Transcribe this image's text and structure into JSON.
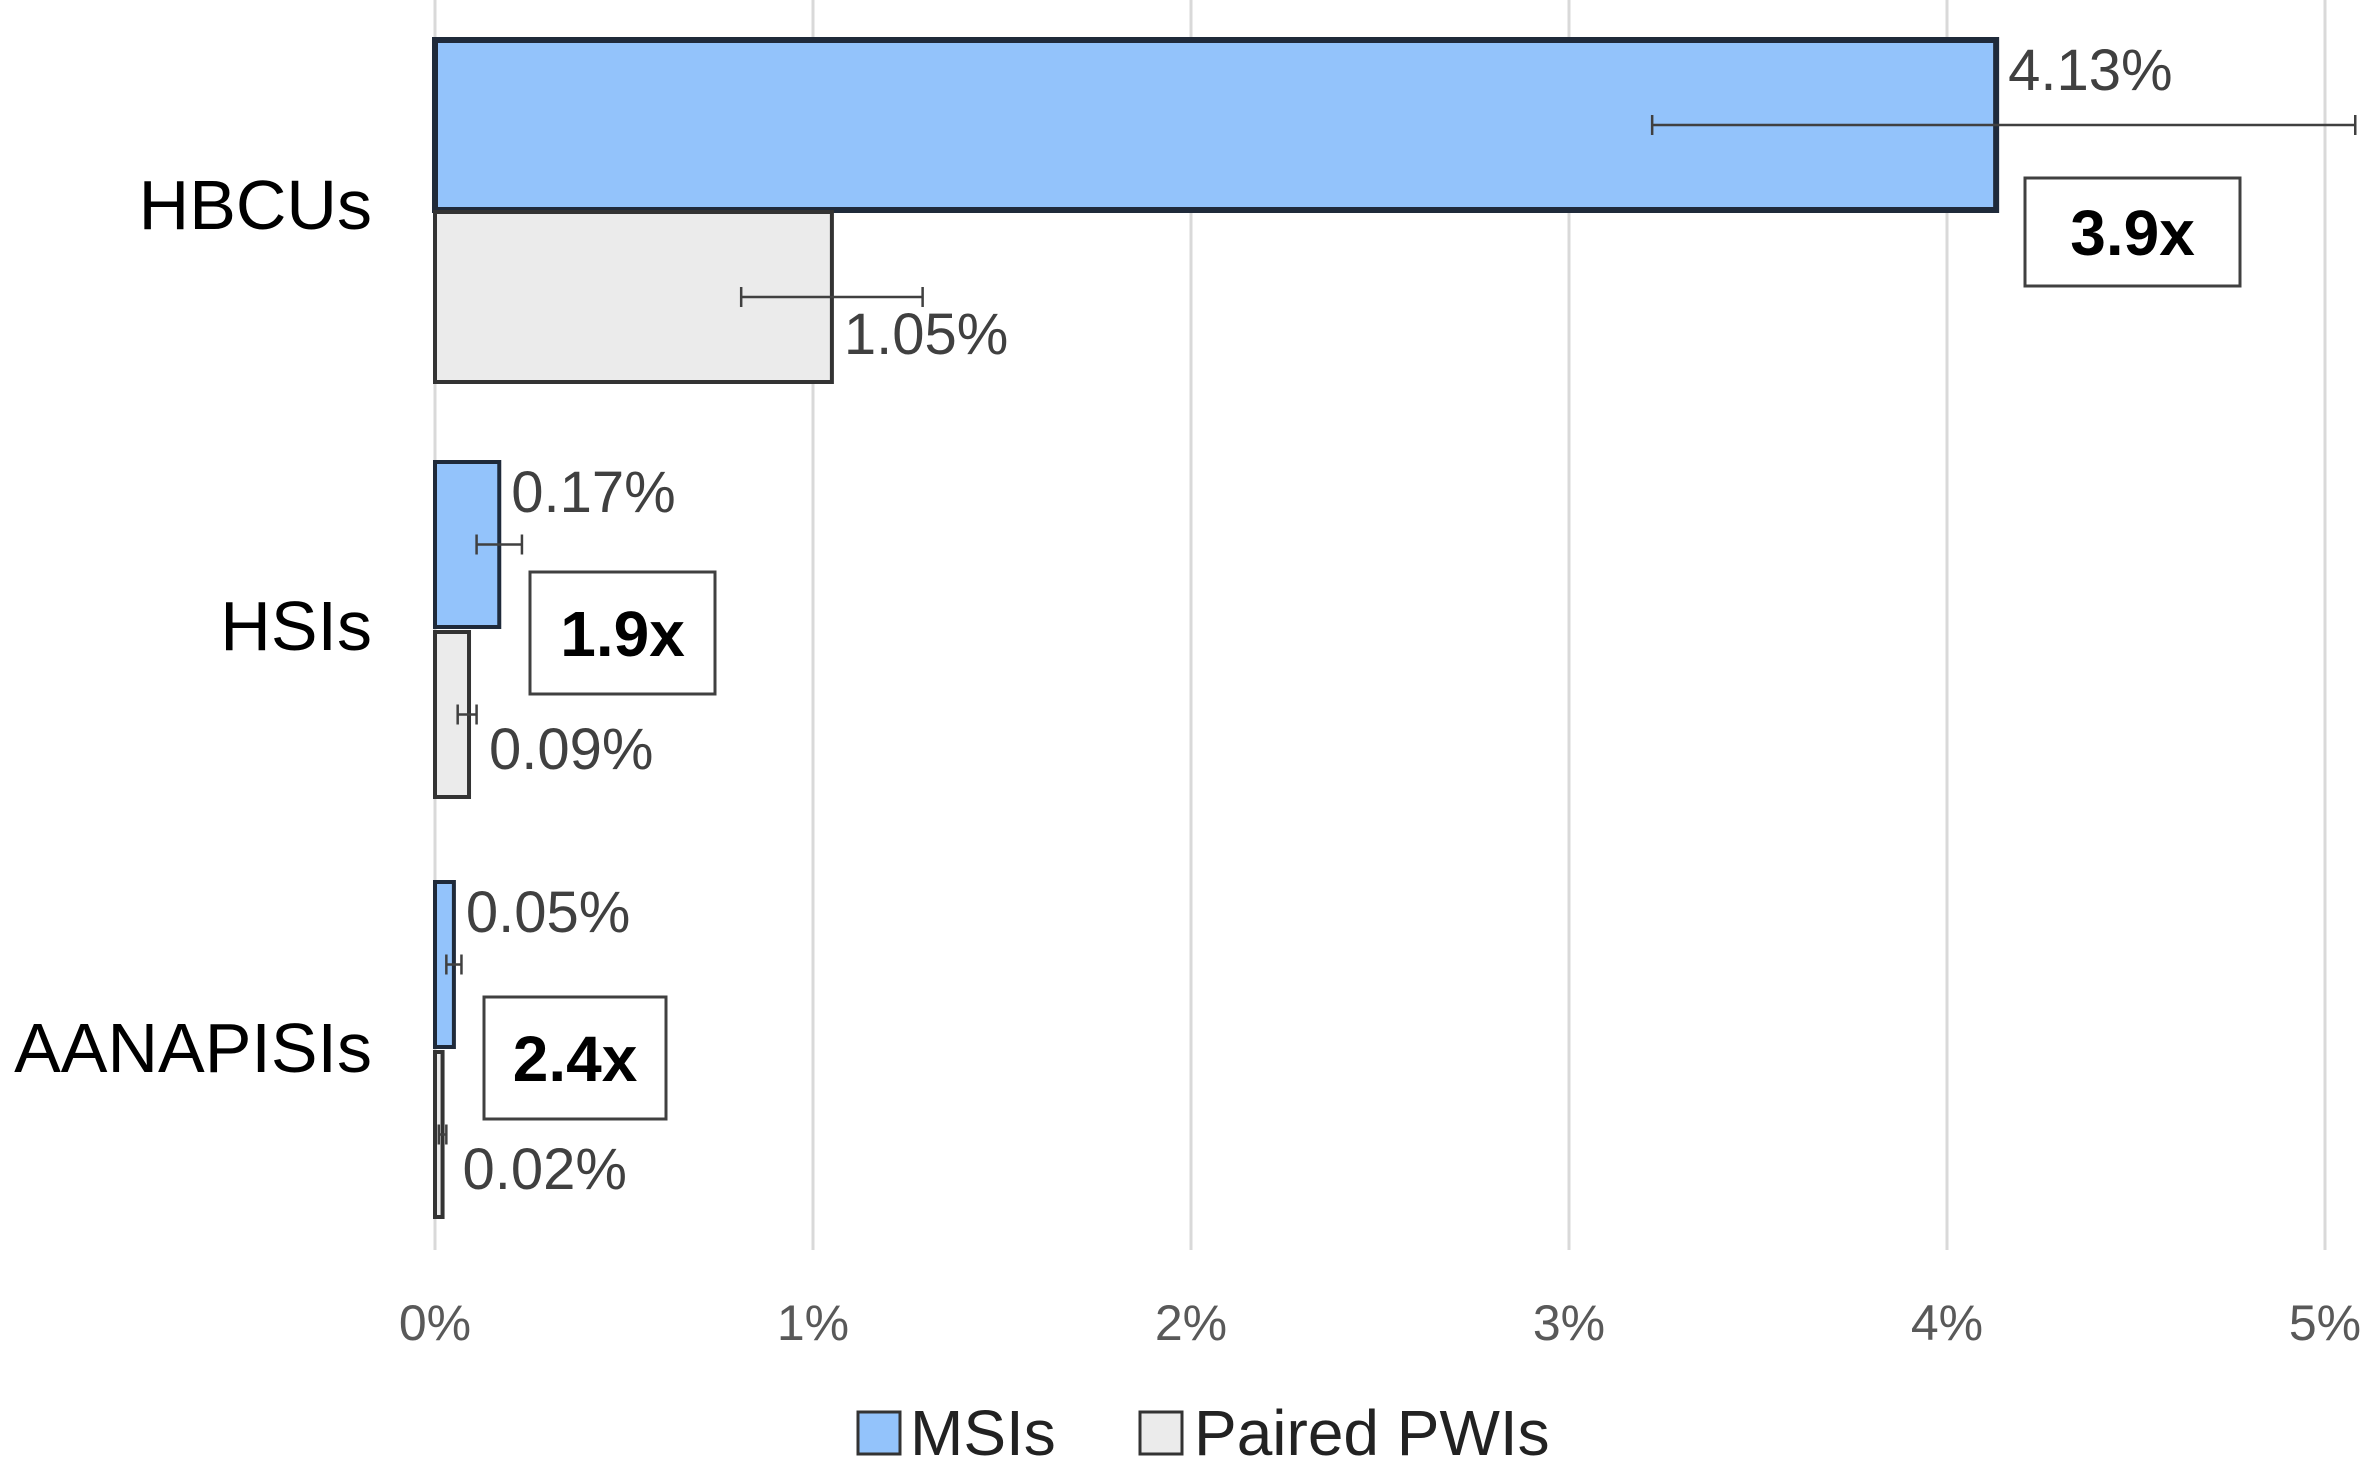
{
  "chart_data": {
    "type": "bar",
    "orientation": "horizontal",
    "title": "",
    "xlabel": "",
    "ylabel": "",
    "categories": [
      "HBCUs",
      "HSIs",
      "AANAPISIs"
    ],
    "xlim": [
      0,
      5
    ],
    "x_ticks": [
      0,
      1,
      2,
      3,
      4,
      5
    ],
    "x_tick_labels": [
      "0%",
      "1%",
      "2%",
      "3%",
      "4%",
      "5%"
    ],
    "grid": true,
    "legend_position": "bottom",
    "series": [
      {
        "name": "MSIs",
        "color": "#93c3fb",
        "values": [
          4.13,
          0.17,
          0.05
        ],
        "value_labels": [
          "4.13%",
          "0.17%",
          "0.05%"
        ],
        "error_low": [
          3.22,
          0.11,
          0.03
        ],
        "error_high": [
          5.08,
          0.23,
          0.07
        ]
      },
      {
        "name": "Paired PWIs",
        "color": "#ebebeb",
        "values": [
          1.05,
          0.09,
          0.02
        ],
        "value_labels": [
          "1.05%",
          "0.09%",
          "0.02%"
        ],
        "error_low": [
          0.81,
          0.06,
          0.01
        ],
        "error_high": [
          1.29,
          0.11,
          0.03
        ]
      }
    ],
    "ratio_labels": [
      "3.9x",
      "1.9x",
      "2.4x"
    ]
  }
}
